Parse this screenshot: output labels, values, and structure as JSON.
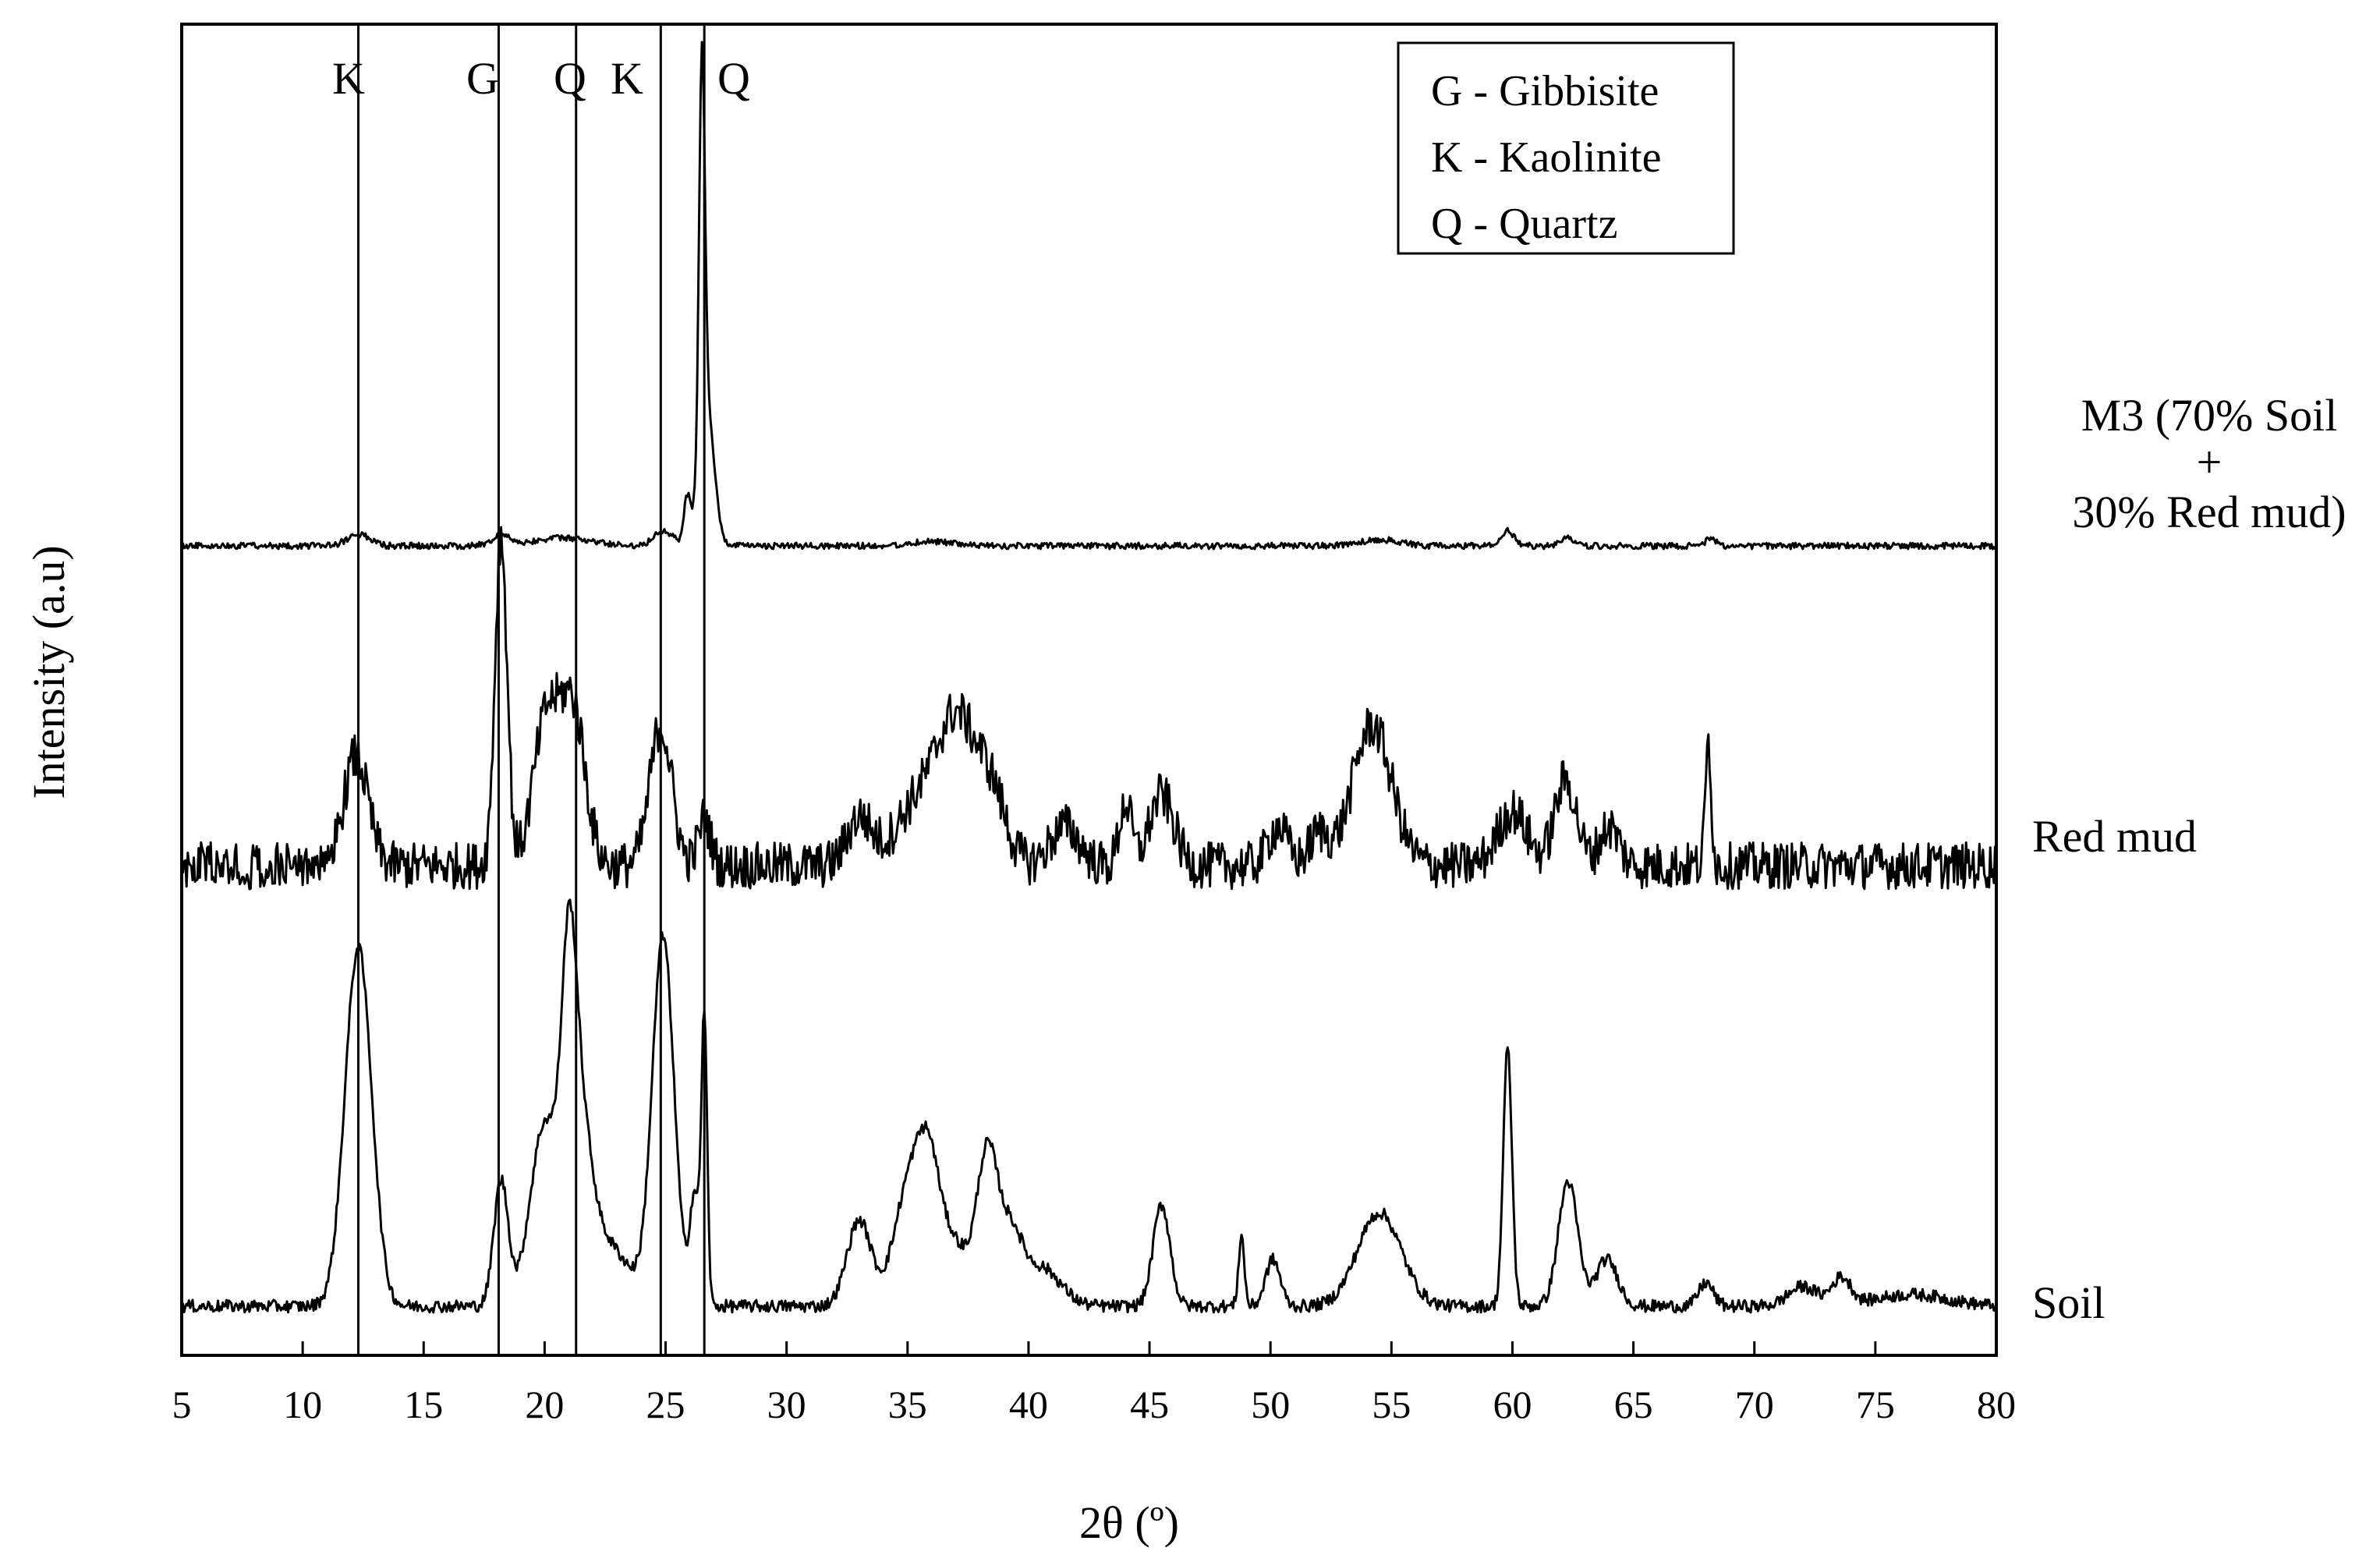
{
  "chart_data": {
    "type": "line",
    "title": "",
    "xlabel": "2θ (º)",
    "ylabel": "Intensity (a.u)",
    "xlim": [
      5,
      80
    ],
    "xticks": [
      5,
      10,
      15,
      20,
      25,
      30,
      35,
      40,
      45,
      50,
      55,
      60,
      65,
      70,
      75,
      80
    ],
    "yticks_shown": false,
    "grid": false,
    "legend": {
      "placement": "top-right",
      "entries": [
        "G - Gibbisite",
        "K - Kaolinite",
        "Q - Quartz"
      ]
    },
    "phase_markers": [
      {
        "label": "K",
        "x": 12.3
      },
      {
        "label": "G",
        "x": 18.1
      },
      {
        "label": "Q",
        "x": 21.3
      },
      {
        "label": "K",
        "x": 24.8
      },
      {
        "label": "Q",
        "x": 26.6
      }
    ],
    "series": [
      {
        "label_lines": [
          "M3 (70% Soil",
          "+",
          "30% Red mud)"
        ],
        "baseline_au": 10.0,
        "noise_au": 0.04,
        "peaks": [
          {
            "x": 12.3,
            "h": 0.15,
            "w": 0.45
          },
          {
            "x": 18.2,
            "h": 0.12,
            "w": 0.4
          },
          {
            "x": 20.7,
            "h": 0.1,
            "w": 1.2
          },
          {
            "x": 24.9,
            "h": 0.2,
            "w": 0.4
          },
          {
            "x": 25.9,
            "h": 0.6,
            "w": 0.15
          },
          {
            "x": 26.5,
            "h": 5.0,
            "w": 0.12
          },
          {
            "x": 26.7,
            "h": 1.8,
            "w": 0.3
          },
          {
            "x": 36.0,
            "h": 0.06,
            "w": 0.8
          },
          {
            "x": 54.5,
            "h": 0.08,
            "w": 0.8
          },
          {
            "x": 59.8,
            "h": 0.2,
            "w": 0.25
          },
          {
            "x": 62.3,
            "h": 0.1,
            "w": 0.3
          },
          {
            "x": 68.2,
            "h": 0.1,
            "w": 0.2
          }
        ]
      },
      {
        "label": "Red mud",
        "baseline_au": 5.9,
        "noise_au": 0.3,
        "peaks": [
          {
            "x": 12.2,
            "h": 1.4,
            "w": 0.5
          },
          {
            "x": 18.2,
            "h": 4.2,
            "w": 0.25
          },
          {
            "x": 20.1,
            "h": 1.9,
            "w": 0.55
          },
          {
            "x": 21.2,
            "h": 1.9,
            "w": 0.5
          },
          {
            "x": 24.8,
            "h": 1.8,
            "w": 0.45
          },
          {
            "x": 26.6,
            "h": 0.6,
            "w": 0.25
          },
          {
            "x": 33.0,
            "h": 0.6,
            "w": 0.5
          },
          {
            "x": 35.5,
            "h": 0.8,
            "w": 1.0
          },
          {
            "x": 37.1,
            "h": 1.7,
            "w": 0.8
          },
          {
            "x": 38.5,
            "h": 0.8,
            "w": 0.6
          },
          {
            "x": 41.5,
            "h": 0.5,
            "w": 0.6
          },
          {
            "x": 44.0,
            "h": 0.8,
            "w": 0.25
          },
          {
            "x": 45.5,
            "h": 0.9,
            "w": 0.5
          },
          {
            "x": 50.3,
            "h": 0.5,
            "w": 0.4
          },
          {
            "x": 52.0,
            "h": 0.4,
            "w": 0.4
          },
          {
            "x": 54.2,
            "h": 1.8,
            "w": 0.8
          },
          {
            "x": 60.0,
            "h": 0.7,
            "w": 0.6
          },
          {
            "x": 62.2,
            "h": 1.1,
            "w": 0.45
          },
          {
            "x": 64.0,
            "h": 0.5,
            "w": 0.4
          },
          {
            "x": 68.1,
            "h": 1.6,
            "w": 0.12
          }
        ]
      },
      {
        "label": "Soil",
        "baseline_au": 0.25,
        "noise_au": 0.08,
        "peaks": [
          {
            "x": 12.3,
            "h": 4.6,
            "w": 0.55
          },
          {
            "x": 18.2,
            "h": 1.6,
            "w": 0.3
          },
          {
            "x": 20.0,
            "h": 2.3,
            "w": 0.6
          },
          {
            "x": 21.0,
            "h": 2.8,
            "w": 0.3
          },
          {
            "x": 21.4,
            "h": 2.1,
            "w": 0.5
          },
          {
            "x": 22.5,
            "h": 0.8,
            "w": 1.0
          },
          {
            "x": 24.9,
            "h": 4.7,
            "w": 0.45
          },
          {
            "x": 26.2,
            "h": 1.4,
            "w": 0.2
          },
          {
            "x": 26.6,
            "h": 3.6,
            "w": 0.12
          },
          {
            "x": 33.0,
            "h": 1.1,
            "w": 0.5
          },
          {
            "x": 35.0,
            "h": 1.4,
            "w": 0.6
          },
          {
            "x": 35.9,
            "h": 1.7,
            "w": 0.5
          },
          {
            "x": 37.0,
            "h": 0.7,
            "w": 0.5
          },
          {
            "x": 38.3,
            "h": 2.0,
            "w": 0.45
          },
          {
            "x": 39.3,
            "h": 0.8,
            "w": 0.45
          },
          {
            "x": 40.5,
            "h": 0.5,
            "w": 0.8
          },
          {
            "x": 45.5,
            "h": 1.3,
            "w": 0.35
          },
          {
            "x": 48.8,
            "h": 0.9,
            "w": 0.12
          },
          {
            "x": 50.1,
            "h": 0.6,
            "w": 0.3
          },
          {
            "x": 54.5,
            "h": 1.2,
            "w": 0.9
          },
          {
            "x": 59.8,
            "h": 3.3,
            "w": 0.18
          },
          {
            "x": 62.3,
            "h": 1.6,
            "w": 0.4
          },
          {
            "x": 63.9,
            "h": 0.6,
            "w": 0.45
          },
          {
            "x": 68.0,
            "h": 0.3,
            "w": 0.3
          },
          {
            "x": 72.0,
            "h": 0.25,
            "w": 0.6
          },
          {
            "x": 73.6,
            "h": 0.35,
            "w": 0.4
          },
          {
            "x": 76.5,
            "h": 0.15,
            "w": 1.5
          }
        ]
      }
    ]
  }
}
